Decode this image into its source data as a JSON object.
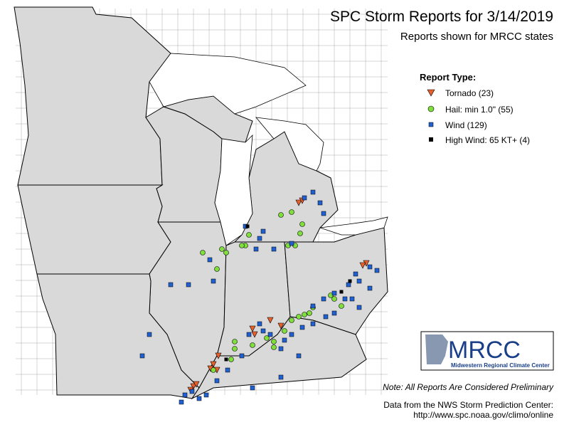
{
  "header": {
    "title": "SPC Storm Reports for 3/14/2019",
    "subtitle": "Reports shown for MRCC states"
  },
  "legend": {
    "title": "Report Type:",
    "items": [
      {
        "label": "Tornado (23)"
      },
      {
        "label": "Hail: min 1.0\" (55)"
      },
      {
        "label": "Wind (129)"
      },
      {
        "label": "High Wind: 65 KT+ (4)"
      }
    ]
  },
  "logo": {
    "name": "MRCC",
    "full_name": "Midwestern Regional Climate Center"
  },
  "note": "Note: All Reports Are Considered Preliminary",
  "source": [
    "Data from the NWS Storm Prediction Center:",
    "http://www.spc.noaa.gov/climo/online"
  ]
}
